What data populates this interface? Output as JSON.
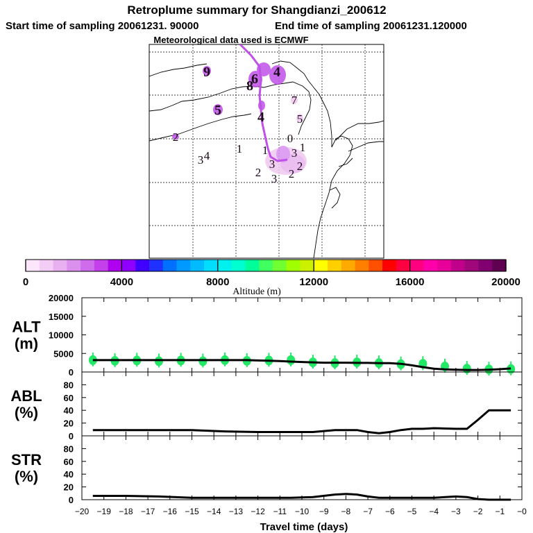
{
  "header": {
    "title": "Retroplume summary for Shangdianzi_200612",
    "start_time": "Start time of sampling 20061231. 90000",
    "end_time": "End time of sampling 20061231.120000",
    "met_data": "Meteorological data used is ECMWF"
  },
  "colors": {
    "trajectory": "#c050e8",
    "plume_light": "#f0c8f0",
    "plume_mid": "#d890f0",
    "markers": "#22e866",
    "line": "#000000",
    "label": "#1a0a1a"
  },
  "map_labels": [
    {
      "text": "9",
      "size": "big"
    },
    {
      "text": "5",
      "size": "big"
    },
    {
      "text": "4",
      "size": "big"
    },
    {
      "text": "6",
      "size": "big"
    },
    {
      "text": "8",
      "size": "big"
    },
    {
      "text": "7",
      "size": "small"
    },
    {
      "text": "5",
      "size": "small"
    },
    {
      "text": "4",
      "size": "big"
    },
    {
      "text": "2",
      "size": "small"
    },
    {
      "text": "3",
      "size": "small"
    },
    {
      "text": "4",
      "size": "small"
    },
    {
      "text": "1",
      "size": "small"
    },
    {
      "text": "1",
      "size": "small"
    },
    {
      "text": "3",
      "size": "small"
    },
    {
      "text": "3",
      "size": "small"
    },
    {
      "text": "2",
      "size": "small"
    },
    {
      "text": "2",
      "size": "small"
    },
    {
      "text": "3",
      "size": "small"
    },
    {
      "text": "2",
      "size": "small"
    },
    {
      "text": "0",
      "size": "small"
    },
    {
      "text": "1",
      "size": "small"
    }
  ],
  "colorbar": {
    "ticks": [
      "0",
      "4000",
      "8000",
      "12000",
      "16000",
      "20000"
    ],
    "label": "Altitude (m)",
    "range": [
      0,
      20000
    ],
    "colors": [
      "#fbe6fb",
      "#f3cdf5",
      "#e9b0f1",
      "#dc90ee",
      "#cf6cec",
      "#c440ea",
      "#b000f0",
      "#9000ff",
      "#4000ff",
      "#2030ff",
      "#0070ff",
      "#0099ff",
      "#00bbff",
      "#00ddff",
      "#00f0f0",
      "#00ffd0",
      "#00ff99",
      "#40ff60",
      "#70ff30",
      "#a0ff00",
      "#ccf000",
      "#ffff00",
      "#ffd000",
      "#ffaa00",
      "#ff8000",
      "#ff5000",
      "#ff0000",
      "#ff0040",
      "#ff0080",
      "#ff00aa",
      "#e8009a",
      "#c0008a",
      "#a0087a",
      "#800070",
      "#600050"
    ]
  },
  "chart_data": [
    {
      "type": "line",
      "name": "ALT",
      "ylabel": "ALT\n(m)",
      "ylim": [
        0,
        20000
      ],
      "yticks": [
        0,
        5000,
        10000,
        15000,
        20000
      ],
      "x": [
        -19.5,
        -19,
        -18.5,
        -18,
        -17.5,
        -17,
        -16.5,
        -16,
        -15.5,
        -15,
        -14.5,
        -14,
        -13.5,
        -13,
        -12.5,
        -12,
        -11.5,
        -11,
        -10.5,
        -10,
        -9.5,
        -9,
        -8.5,
        -8,
        -7.5,
        -7,
        -6.5,
        -6,
        -5.5,
        -5,
        -4.5,
        -4,
        -3.5,
        -3,
        -2.5,
        -2,
        -1.5,
        -1,
        -0.5
      ],
      "y": [
        3200,
        3200,
        3200,
        3200,
        3200,
        3200,
        3200,
        3200,
        3200,
        3200,
        3200,
        3200,
        3200,
        3200,
        3200,
        3100,
        3050,
        2950,
        2800,
        2700,
        2600,
        2500,
        2500,
        2500,
        2450,
        2450,
        2400,
        2400,
        2200,
        1800,
        1300,
        900,
        700,
        600,
        550,
        550,
        600,
        750,
        950
      ],
      "markers_x": [
        -19.5,
        -18.5,
        -17.5,
        -16.5,
        -15.5,
        -14.5,
        -13.5,
        -12.5,
        -11.5,
        -10.5,
        -9.5,
        -8.5,
        -7.5,
        -6.5,
        -5.5,
        -4.5,
        -3.5,
        -2.5,
        -1.5,
        -0.5
      ],
      "markers_y": [
        3200,
        3000,
        3100,
        2900,
        3100,
        2900,
        3200,
        3000,
        3100,
        3200,
        2600,
        2400,
        2600,
        2400,
        2100,
        2200,
        1500,
        900,
        700,
        800
      ]
    },
    {
      "type": "line",
      "name": "ABL",
      "ylabel": "ABL\n(%)",
      "ylim": [
        0,
        100
      ],
      "yticks": [
        0,
        20,
        40,
        60,
        80
      ],
      "x": [
        -19.5,
        -18,
        -16.5,
        -15,
        -13.5,
        -12,
        -10.5,
        -9.5,
        -8.5,
        -7.5,
        -7,
        -6.5,
        -6,
        -5.5,
        -5,
        -4.5,
        -4,
        -3,
        -2.5,
        -2,
        -1.5,
        -1,
        -0.5
      ],
      "y": [
        9,
        9,
        9,
        9,
        7,
        6,
        6,
        6,
        9,
        9,
        6,
        4,
        6,
        9,
        11,
        11,
        12,
        11,
        11,
        25,
        40,
        40,
        40
      ]
    },
    {
      "type": "line",
      "name": "STR",
      "ylabel": "STR\n(%)",
      "ylim": [
        0,
        100
      ],
      "yticks": [
        0,
        20,
        40,
        60,
        80
      ],
      "x": [
        -19.5,
        -18,
        -16.5,
        -15,
        -13.5,
        -12,
        -10.5,
        -9.5,
        -8.5,
        -8,
        -7.5,
        -7,
        -6.5,
        -6,
        -5,
        -4,
        -3,
        -2.5,
        -2,
        -1.5,
        -1,
        -0.5
      ],
      "y": [
        6,
        6,
        5,
        3,
        3,
        3,
        3,
        4,
        8,
        9,
        8,
        5,
        3,
        3,
        3,
        3,
        5,
        4,
        1,
        0,
        0,
        0
      ]
    }
  ],
  "xaxis": {
    "label": "Travel time (days)",
    "ticks": [
      "−20",
      "−19",
      "−18",
      "−17",
      "−16",
      "−15",
      "−14",
      "−13",
      "−12",
      "−11",
      "−10",
      "−9",
      "−8",
      "−7",
      "−6",
      "−5",
      "−4",
      "−3",
      "−2",
      "−1",
      "−0"
    ],
    "range": [
      -20,
      0
    ]
  }
}
